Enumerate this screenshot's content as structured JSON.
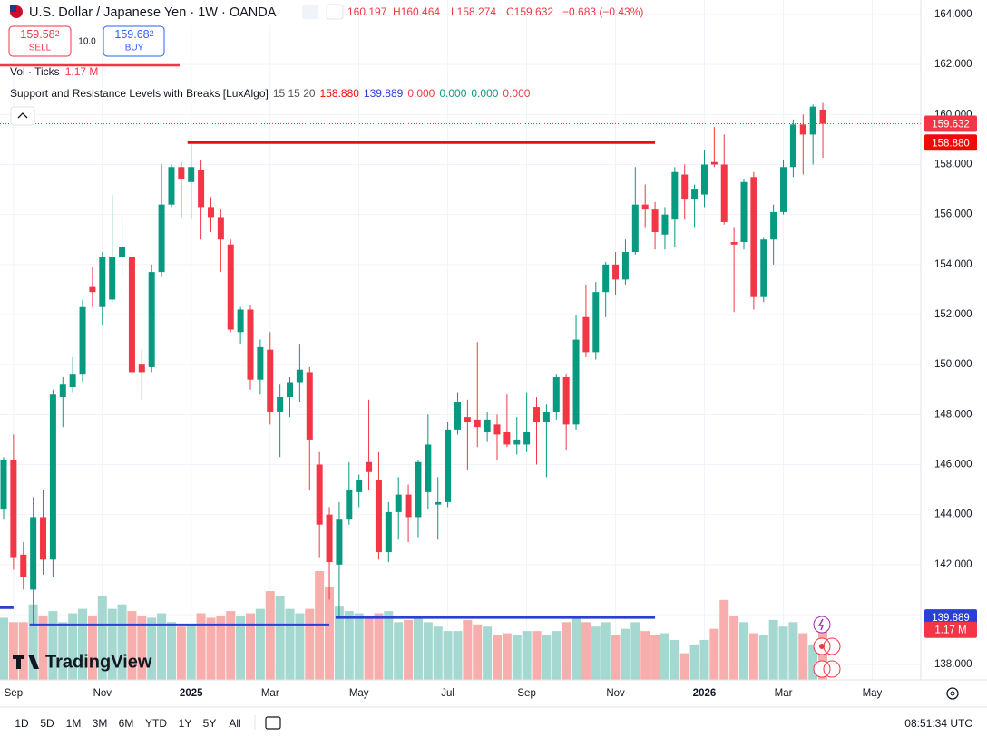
{
  "header": {
    "symbol": "U.S. Dollar / Japanese Yen · 1W · OANDA",
    "ohlc": [
      "160.197",
      "H160.464",
      "L158.274",
      "C159.632"
    ],
    "change": "−0.683 (−0.43%)"
  },
  "trade": {
    "sell_price": "159.58",
    "sell_sup": "2",
    "sell": "SELL",
    "spread": "10.0",
    "buy_price": "159.68",
    "buy_sup": "2",
    "buy": "BUY"
  },
  "volume_legend": {
    "name": "Vol · Ticks",
    "value": "1.17 M"
  },
  "indicator_legend": {
    "name": "Support and Resistance Levels with Breaks [LuxAlgo]",
    "params": "15 15 20",
    "values": [
      "158.880",
      "139.889",
      "0.000",
      "0.000",
      "0.000",
      "0.000"
    ]
  },
  "logo": "TradingView",
  "toolbar": {
    "ranges": [
      "1D",
      "5D",
      "1M",
      "3M",
      "6M",
      "YTD",
      "1Y",
      "5Y",
      "All"
    ],
    "time": "08:51:34 UTC"
  },
  "chart_data": {
    "type": "candlestick",
    "up_color": "#089981",
    "down_color": "#f23645",
    "volume_up_color": "#a4d8d0",
    "volume_down_color": "#f7aeac",
    "categories": [
      null,
      "Sep",
      null,
      null,
      null,
      null,
      null,
      null,
      null,
      null,
      "Nov",
      null,
      null,
      null,
      null,
      null,
      null,
      null,
      null,
      "2025",
      null,
      null,
      null,
      null,
      null,
      null,
      null,
      "Mar",
      null,
      null,
      null,
      null,
      null,
      null,
      null,
      null,
      "May",
      null,
      null,
      null,
      null,
      null,
      null,
      null,
      null,
      "Jul",
      null,
      null,
      null,
      null,
      null,
      null,
      null,
      "Sep",
      null,
      null,
      null,
      null,
      null,
      null,
      null,
      null,
      "Nov",
      null,
      null,
      null,
      null,
      null,
      null,
      null,
      null,
      "2026",
      null,
      null,
      null,
      null,
      null,
      null,
      null,
      "Mar",
      null,
      null,
      null,
      null,
      null,
      null,
      null,
      null,
      "May"
    ],
    "open": [
      144.2,
      146.2,
      142.4,
      141.0,
      143.9,
      142.2,
      148.7,
      149.1,
      149.6,
      153.1,
      152.3,
      152.6,
      154.3,
      154.3,
      150.0,
      149.9,
      153.7,
      156.4,
      157.9,
      157.3,
      157.8,
      156.3,
      155.9,
      154.8,
      151.3,
      152.2,
      149.4,
      150.6,
      148.1,
      148.7,
      149.3,
      149.7,
      146.0,
      144.0,
      142.0,
      143.8,
      144.9,
      146.1,
      145.4,
      142.5,
      144.1,
      144.8,
      143.9,
      144.9,
      144.4,
      144.5,
      147.4,
      147.9,
      147.8,
      147.3,
      147.6,
      147.3,
      146.8,
      146.8,
      148.3,
      147.7,
      148.1,
      149.5,
      147.6,
      151.9,
      150.5,
      152.9,
      154.0,
      153.4,
      154.5,
      156.4,
      156.2,
      155.2,
      155.8,
      157.6,
      156.6,
      156.8,
      158.1,
      158.0,
      154.9,
      154.9,
      157.5,
      152.7,
      155.0,
      156.1,
      157.9,
      159.6,
      159.2,
      160.197,
      null,
      null,
      null,
      null,
      null
    ],
    "high": [
      146.3,
      147.2,
      142.9,
      144.7,
      145.0,
      149.0,
      149.5,
      150.3,
      152.6,
      153.9,
      154.5,
      156.8,
      155.9,
      154.5,
      150.6,
      154.0,
      158.0,
      158.0,
      158.1,
      158.8,
      158.2,
      156.7,
      156.2,
      155.0,
      152.3,
      152.4,
      151.0,
      151.3,
      149.2,
      149.5,
      150.8,
      149.9,
      146.5,
      144.3,
      144.5,
      146.1,
      145.6,
      148.6,
      146.5,
      144.5,
      145.5,
      145.2,
      146.2,
      148.0,
      145.5,
      147.7,
      148.9,
      148.6,
      150.9,
      148.1,
      148.0,
      148.8,
      147.9,
      148.9,
      148.7,
      148.4,
      149.6,
      149.6,
      152.0,
      153.2,
      153.3,
      154.1,
      154.5,
      155.0,
      157.9,
      157.2,
      156.5,
      156.3,
      157.9,
      158.0,
      157.2,
      158.6,
      159.5,
      159.2,
      155.5,
      157.4,
      157.7,
      155.1,
      156.4,
      158.2,
      159.8,
      160.0,
      160.4,
      160.464,
      null,
      null,
      null,
      null,
      null
    ],
    "low": [
      143.8,
      141.8,
      141.0,
      139.6,
      141.6,
      141.5,
      147.5,
      148.9,
      149.3,
      152.3,
      151.6,
      152.5,
      153.6,
      149.6,
      148.6,
      149.7,
      153.5,
      156.3,
      155.9,
      155.8,
      155.0,
      155.3,
      153.7,
      151.3,
      150.8,
      149.0,
      148.8,
      147.6,
      146.3,
      147.9,
      148.5,
      145.0,
      142.3,
      140.6,
      139.9,
      143.6,
      144.3,
      145.0,
      142.2,
      142.1,
      143.0,
      142.9,
      143.1,
      144.2,
      143.0,
      144.3,
      147.2,
      145.8,
      146.7,
      146.9,
      146.2,
      146.7,
      146.4,
      146.5,
      146.0,
      145.5,
      147.8,
      146.6,
      147.4,
      150.3,
      150.2,
      151.9,
      152.8,
      153.2,
      154.4,
      155.5,
      154.6,
      154.6,
      154.7,
      155.8,
      155.5,
      156.3,
      157.9,
      155.6,
      152.1,
      154.6,
      152.2,
      152.5,
      154.0,
      156.0,
      157.5,
      157.6,
      158.0,
      158.274,
      null,
      null,
      null,
      null,
      null
    ],
    "close": [
      146.2,
      142.3,
      141.5,
      143.9,
      142.2,
      148.8,
      149.2,
      149.6,
      152.3,
      152.9,
      154.3,
      154.3,
      154.7,
      149.7,
      149.7,
      153.7,
      156.4,
      157.9,
      157.4,
      157.9,
      156.3,
      155.9,
      155.0,
      151.4,
      152.2,
      149.4,
      150.7,
      148.1,
      148.7,
      149.3,
      149.8,
      147.0,
      143.6,
      142.1,
      143.8,
      145.0,
      145.4,
      145.7,
      142.5,
      144.1,
      144.8,
      143.9,
      146.1,
      146.8,
      144.5,
      147.4,
      148.5,
      147.7,
      147.5,
      147.8,
      147.2,
      146.8,
      147.0,
      147.3,
      147.7,
      148.1,
      149.5,
      147.6,
      151.0,
      150.5,
      152.9,
      154.0,
      153.4,
      154.5,
      156.4,
      156.2,
      155.3,
      156.0,
      157.7,
      156.6,
      157.0,
      158.0,
      158.0,
      155.7,
      154.8,
      157.3,
      152.7,
      155.0,
      156.1,
      157.9,
      159.6,
      159.2,
      160.315,
      159.632,
      null,
      null,
      null,
      null,
      null
    ],
    "volume": [
      1.4,
      1.3,
      1.3,
      1.7,
      1.45,
      1.55,
      1.3,
      1.5,
      1.6,
      1.45,
      1.9,
      1.6,
      1.7,
      1.55,
      1.45,
      1.4,
      1.5,
      1.3,
      1.2,
      1.25,
      1.5,
      1.4,
      1.45,
      1.55,
      1.45,
      1.5,
      1.6,
      2.0,
      1.9,
      1.6,
      1.5,
      1.6,
      2.45,
      2.1,
      1.65,
      1.55,
      1.5,
      1.45,
      1.5,
      1.55,
      1.3,
      1.35,
      1.4,
      1.3,
      1.2,
      1.1,
      1.1,
      1.35,
      1.25,
      1.2,
      1.0,
      1.05,
      1.0,
      1.1,
      1.1,
      1.0,
      1.1,
      1.3,
      1.4,
      1.3,
      1.2,
      1.3,
      1.0,
      1.15,
      1.3,
      1.1,
      1.0,
      1.05,
      0.9,
      0.6,
      0.8,
      0.9,
      1.15,
      1.8,
      1.45,
      1.3,
      1.05,
      1.0,
      1.35,
      1.2,
      1.3,
      1.05,
      0.8,
      1.17,
      null,
      null,
      null,
      null,
      null
    ],
    "ylim": [
      137.39,
      164.58
    ],
    "yticks": [
      {
        "value": 138,
        "label": "138.000"
      },
      {
        "value": 140,
        "label": "140.000"
      },
      {
        "value": 142,
        "label": "142.000"
      },
      {
        "value": 144,
        "label": "144.000"
      },
      {
        "value": 146,
        "label": "146.000"
      },
      {
        "value": 148,
        "label": "148.000"
      },
      {
        "value": 150,
        "label": "150.000"
      },
      {
        "value": 152,
        "label": "152.000"
      },
      {
        "value": 154,
        "label": "154.000"
      },
      {
        "value": 156,
        "label": "156.000"
      },
      {
        "value": 158,
        "label": "158.000"
      },
      {
        "value": 160,
        "label": "160.000"
      },
      {
        "value": 162,
        "label": "162.000"
      },
      {
        "value": 164,
        "label": "164.000"
      }
    ],
    "grid": true,
    "levels": [
      {
        "value": 158.88,
        "start": 19,
        "end": 66,
        "color": "#f20a0a"
      },
      {
        "value": 139.889,
        "start": 34,
        "end": 66,
        "color": "#2a3fd6"
      },
      {
        "value": 139.59,
        "start": 3,
        "end": 33,
        "color": "#2a3fd6"
      },
      {
        "value": 140.28,
        "start": 0,
        "end": 1,
        "color": "#2a3fd6"
      }
    ]
  }
}
